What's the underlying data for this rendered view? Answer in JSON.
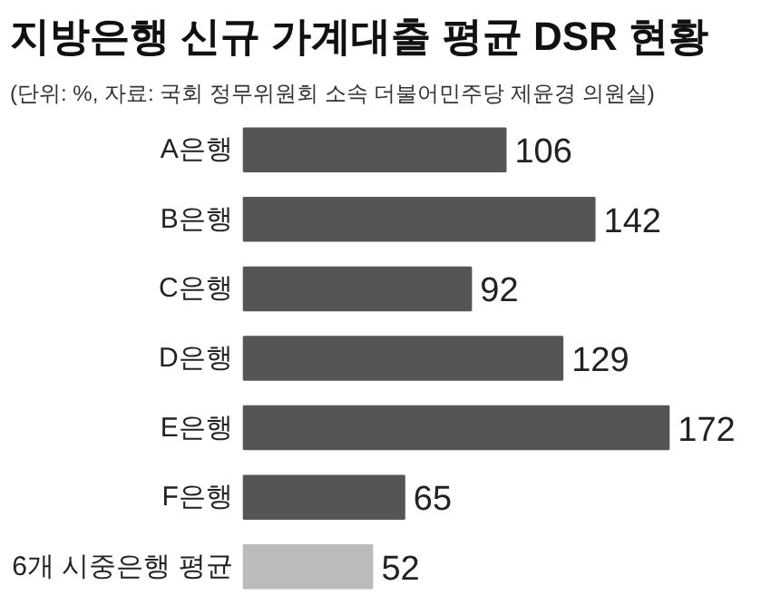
{
  "chart_data": {
    "type": "bar",
    "orientation": "horizontal",
    "title": "지방은행 신규 가계대출 평균 DSR 현황",
    "subtitle": "(단위: %, 자료: 국회 정무위원회 소속 더불어민주당 제윤경 의원실)",
    "categories": [
      "A은행",
      "B은행",
      "C은행",
      "D은행",
      "E은행",
      "F은행",
      "6개 시중은행 평균"
    ],
    "values": [
      106,
      142,
      92,
      129,
      172,
      65,
      52
    ],
    "colors": [
      "#555555",
      "#555555",
      "#555555",
      "#555555",
      "#555555",
      "#555555",
      "#bbbbbb"
    ],
    "data_labels": true,
    "grid": false
  }
}
